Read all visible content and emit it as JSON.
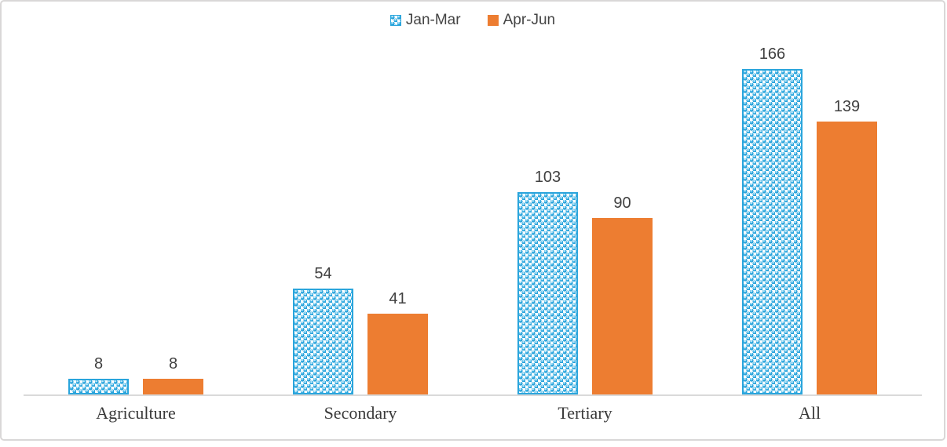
{
  "chart_data": {
    "type": "bar",
    "title": "",
    "categories": [
      "Agriculture",
      "Secondary",
      "Tertiary",
      "All"
    ],
    "series": [
      {
        "name": "Jan-Mar",
        "values": [
          8,
          54,
          103,
          166
        ],
        "fill": "pattern-spheres",
        "color": "#2AA5DC"
      },
      {
        "name": "Apr-Jun",
        "values": [
          8,
          41,
          90,
          139
        ],
        "fill": "solid",
        "color": "#ED7D31"
      }
    ],
    "ylim": [
      0,
      180
    ],
    "grid": false,
    "legend_position": "top-center",
    "data_labels": true,
    "colors": {
      "axis_line": "#DADADA",
      "frame_border": "#D9D7D7",
      "value_label": "#404040",
      "category_label": "#3A3A3A",
      "legend_text": "#444444",
      "pattern_blue": "#2AA5DC",
      "solid_orange": "#ED7D31"
    }
  }
}
